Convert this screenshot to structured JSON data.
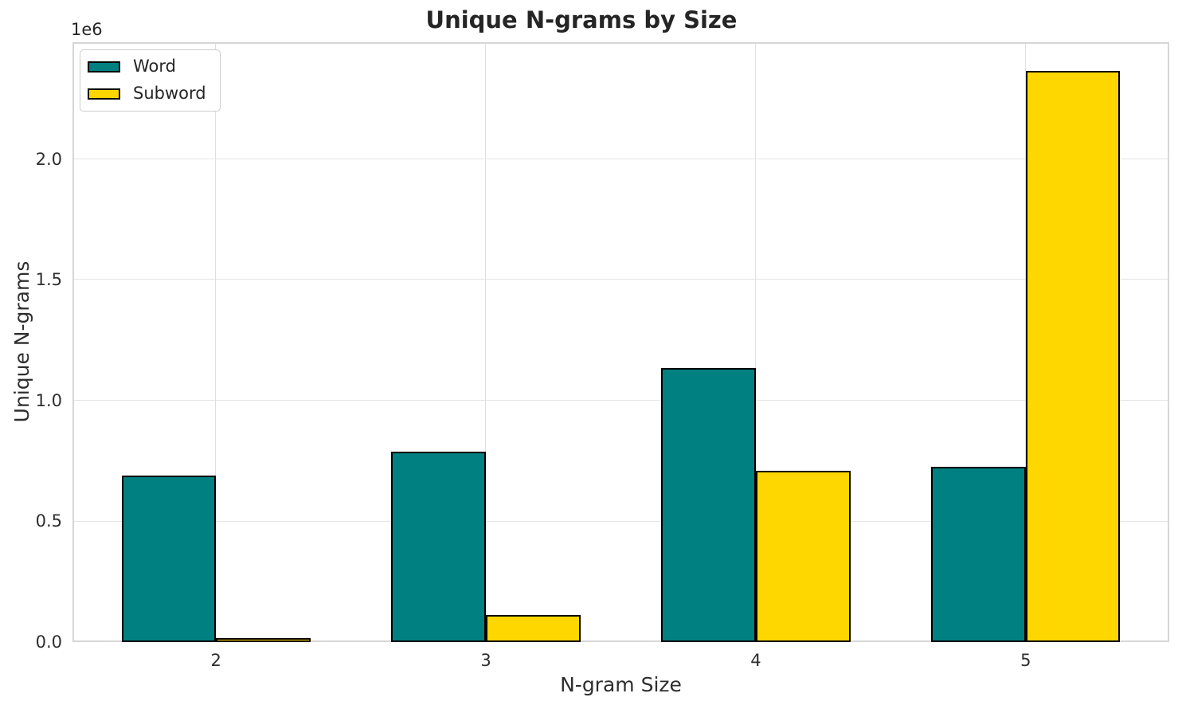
{
  "chart_data": {
    "type": "bar",
    "title": "Unique N-grams by Size",
    "xlabel": "N-gram Size",
    "ylabel": "Unique N-grams",
    "y_offset_label": "1e6",
    "categories": [
      "2",
      "3",
      "4",
      "5"
    ],
    "x_positions": [
      2,
      3,
      4,
      5
    ],
    "series": [
      {
        "name": "Word",
        "color": "#008080",
        "values": [
          690000,
          788000,
          1134000,
          725000
        ]
      },
      {
        "name": "Subword",
        "color": "#FFD700",
        "values": [
          15000,
          112000,
          709000,
          2366000
        ]
      }
    ],
    "bar_edge_color": "#000000",
    "bar_width_units": 0.35,
    "xlim": [
      1.4685,
      5.5315
    ],
    "ylim": [
      0,
      2484000
    ],
    "yticks": [
      0,
      500000,
      1000000,
      1500000,
      2000000
    ],
    "ytick_labels": [
      "0.0",
      "0.5",
      "1.0",
      "1.5",
      "2.0"
    ],
    "grid": true,
    "grid_color_h": "#e5e5e5",
    "grid_color_v": "#e0e0e0",
    "legend_position": "upper left"
  }
}
